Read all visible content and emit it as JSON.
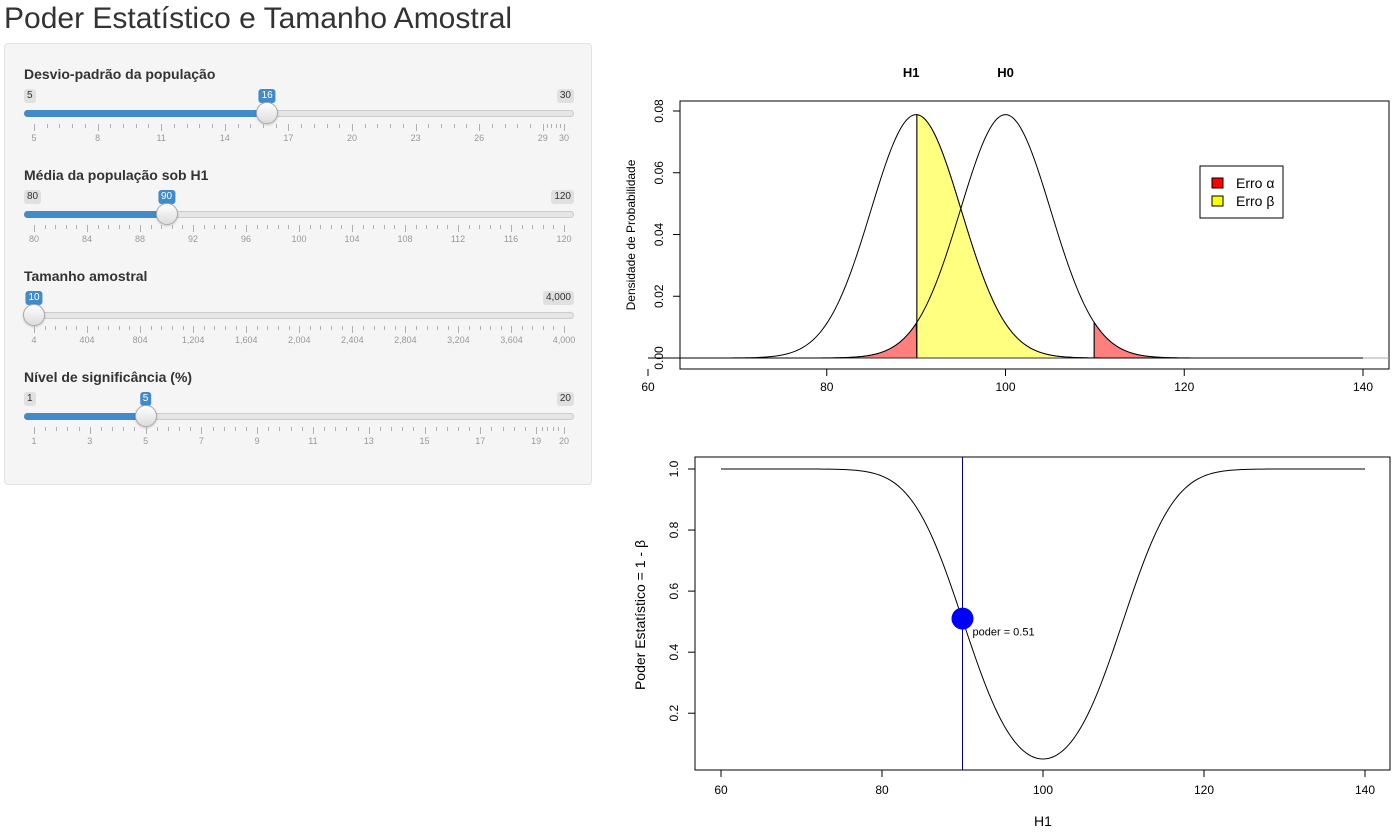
{
  "app": {
    "title": "Poder Estatístico e Tamanho Amostral"
  },
  "accent_color": "#428bca",
  "sliders": [
    {
      "label": "Desvio-padrão da população",
      "min": "5",
      "max": "30",
      "value": "16",
      "min_num": 5,
      "max_num": 30,
      "value_num": 16,
      "ticks": [
        "5",
        "8",
        "11",
        "14",
        "17",
        "20",
        "23",
        "26",
        "29",
        "30"
      ],
      "tick_values": [
        5,
        8,
        11,
        14,
        17,
        20,
        23,
        26,
        29,
        30
      ]
    },
    {
      "label": "Média da população sob H1",
      "min": "80",
      "max": "120",
      "value": "90",
      "min_num": 80,
      "max_num": 120,
      "value_num": 90,
      "ticks": [
        "80",
        "84",
        "88",
        "92",
        "96",
        "100",
        "104",
        "108",
        "112",
        "116",
        "120"
      ],
      "tick_values": [
        80,
        84,
        88,
        92,
        96,
        100,
        104,
        108,
        112,
        116,
        120
      ]
    },
    {
      "label": "Tamanho amostral",
      "min": "10",
      "max": "4,000",
      "value": "10",
      "min_num": 10,
      "max_num": 4000,
      "value_num": 10,
      "hide_min": true,
      "ticks": [
        "4",
        "404",
        "804",
        "1,204",
        "1,604",
        "2,004",
        "2,404",
        "2,804",
        "3,204",
        "3,604",
        "4,000"
      ],
      "tick_values": [
        4,
        404,
        804,
        1204,
        1604,
        2004,
        2404,
        2804,
        3204,
        3604,
        4000
      ]
    },
    {
      "label": "Nível de significância (%)",
      "min": "1",
      "max": "20",
      "value": "5",
      "min_num": 1,
      "max_num": 20,
      "value_num": 5,
      "ticks": [
        "1",
        "3",
        "5",
        "7",
        "9",
        "11",
        "13",
        "15",
        "17",
        "19",
        "20"
      ],
      "tick_values": [
        1,
        3,
        5,
        7,
        9,
        11,
        13,
        15,
        17,
        19,
        20
      ]
    }
  ],
  "chart_data": [
    {
      "type": "area",
      "title_labels": [
        "H1",
        "H0"
      ],
      "xlabel": "",
      "ylabel": "Densidade de Probabilidade",
      "xlim": [
        60,
        140
      ],
      "ylim": [
        0,
        0.08
      ],
      "xticks": [
        "60",
        "80",
        "100",
        "120",
        "140"
      ],
      "yticks": [
        "0.00",
        "0.02",
        "0.04",
        "0.06",
        "0.08"
      ],
      "series": [
        {
          "mean": 90,
          "sd": 5.06
        },
        {
          "mean": 100,
          "sd": 5.06
        }
      ],
      "critical_lower": 90.08,
      "critical_upper": 109.92,
      "legend": {
        "position": "top-right",
        "entries": [
          "Erro α",
          "Erro β"
        ]
      },
      "colors": {
        "alpha": "#ff7f7f",
        "beta": "#ffff80",
        "alpha_legend": "#ff0000",
        "beta_legend": "#ffff00"
      }
    },
    {
      "type": "line",
      "xlabel": "H1",
      "ylabel": "Poder Estatístico = 1 - β",
      "xlim": [
        60,
        140
      ],
      "ylim": [
        0.05,
        1.0
      ],
      "xticks": [
        "60",
        "80",
        "100",
        "120",
        "140"
      ],
      "yticks": [
        "0.2",
        "0.4",
        "0.6",
        "0.8",
        "1.0"
      ],
      "marker": {
        "x": 90,
        "y": 0.51
      },
      "annotation": "poder =  0.51",
      "colors": {
        "marker": "#0000ff",
        "vline": "#00008b"
      }
    }
  ]
}
